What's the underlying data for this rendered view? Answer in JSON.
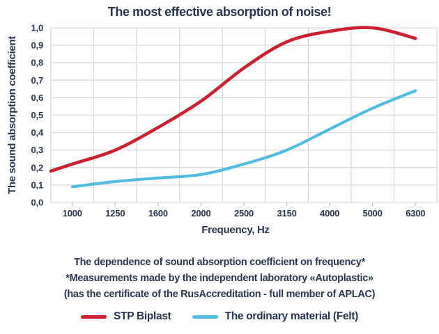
{
  "title": "The most effective absorption of noise!",
  "chart_data": {
    "type": "line",
    "title": "The most effective absorption of noise!",
    "xlabel": "Frequency, Hz",
    "ylabel": "The sound absorption coefficient",
    "x_tick_labels": [
      "1000",
      "1250",
      "1600",
      "2000",
      "2500",
      "3150",
      "4000",
      "5000",
      "6300"
    ],
    "y_tick_labels_top_to_bottom": [
      "1,0",
      "0,9",
      "0,8",
      "0,7",
      "0,6",
      "0,5",
      "0,4",
      "0,3",
      "0,2",
      "0,1",
      "0,0"
    ],
    "ylim": [
      0.0,
      1.0
    ],
    "grid": true,
    "legend_position": "bottom",
    "series": [
      {
        "name": "STP Biplast",
        "color": "#cb2130",
        "values": [
          0.22,
          0.3,
          0.43,
          0.58,
          0.77,
          0.92,
          0.98,
          1.0,
          0.94
        ],
        "starts_at_plot_left_edge_value": 0.18,
        "peak_note": "maximum ~1.0 between 4000 and 5000 Hz"
      },
      {
        "name": "The ordinary material (Felt)",
        "color": "#53bbdd",
        "values": [
          0.09,
          0.12,
          0.14,
          0.16,
          0.22,
          0.3,
          0.42,
          0.54,
          0.64
        ]
      }
    ]
  },
  "caption": {
    "line1": "The dependence of sound absorption coefficient on frequency*",
    "line2": "*Measurements made by the independent laboratory «Autoplastic»",
    "line3": "(has the certificate of the RusAccreditation - full member of APLAC)"
  },
  "legend": [
    {
      "label": "STP Biplast",
      "color": "#cb2130"
    },
    {
      "label": "The ordinary material (Felt)",
      "color": "#53bbdd"
    }
  ],
  "colors": {
    "text": "#293650",
    "grid": "#d9d9de",
    "axis": "#c2c2c8",
    "background": "#ffffff"
  }
}
